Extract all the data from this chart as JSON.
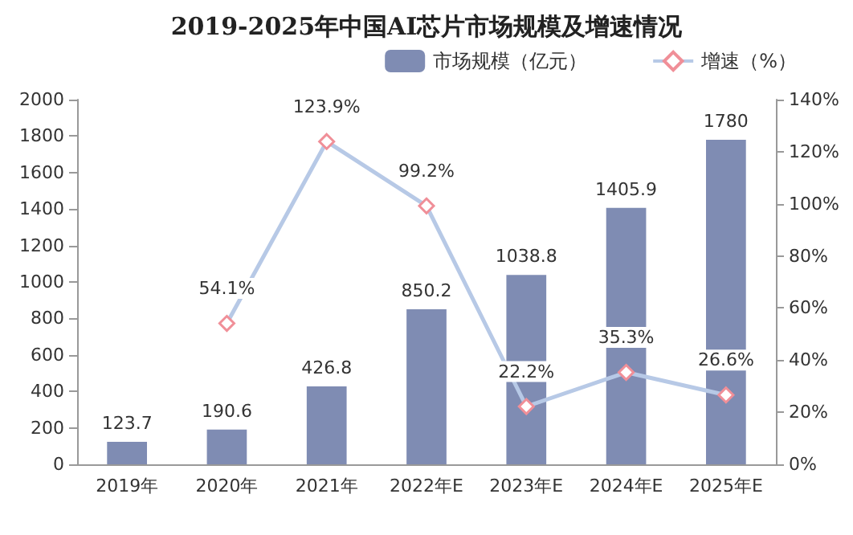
{
  "chart_data": {
    "type": "bar",
    "title": "2019-2025年中国AI芯片市场规模及增速情况",
    "categories": [
      "2019年",
      "2020年",
      "2021年",
      "2022年E",
      "2023年E",
      "2024年E",
      "2025年E"
    ],
    "series": [
      {
        "name": "市场规模（亿元）",
        "color": "#7f8cb3",
        "values": [
          123.7,
          190.6,
          426.8,
          850.2,
          1038.8,
          1405.9,
          1780
        ],
        "value_labels": [
          "123.7",
          "190.6",
          "426.8",
          "850.2",
          "1038.8",
          "1405.9",
          "1780"
        ]
      },
      {
        "name": "增速（%）",
        "type": "line",
        "axis": "y2",
        "color": "#b7c9e6",
        "marker": "diamond",
        "values": [
          null,
          54.1,
          123.9,
          99.2,
          22.2,
          35.3,
          26.6
        ],
        "value_labels": [
          null,
          "54.1%",
          "123.9%",
          "99.2%",
          "22.2%",
          "35.3%",
          "26.6%"
        ]
      }
    ],
    "ylim": [
      0,
      2000
    ],
    "yticks": [
      0,
      200,
      400,
      600,
      800,
      1000,
      1200,
      1400,
      1600,
      1800,
      2000
    ],
    "y2lim": [
      0,
      140
    ],
    "y2ticks": [
      {
        "value": 0,
        "label": "0%"
      },
      {
        "value": 20,
        "label": "20%"
      },
      {
        "value": 40,
        "label": "40%"
      },
      {
        "value": 60,
        "label": "60%"
      },
      {
        "value": 80,
        "label": "80%"
      },
      {
        "value": 100,
        "label": "100%"
      },
      {
        "value": 120,
        "label": "120%"
      },
      {
        "value": 140,
        "label": "140%"
      }
    ],
    "grid": false,
    "legend": "top right"
  }
}
